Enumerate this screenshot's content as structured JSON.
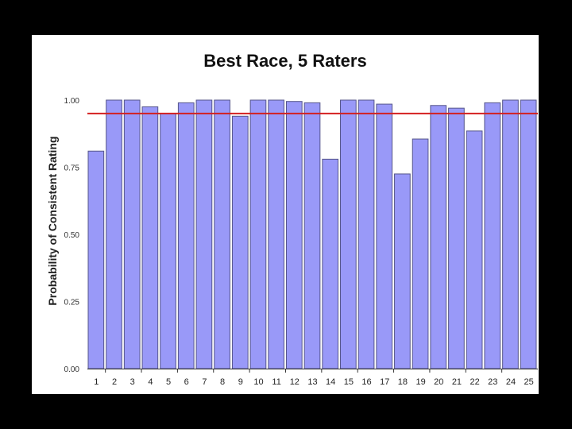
{
  "chart_data": {
    "type": "bar",
    "title": "Best Race, 5 Raters",
    "xlabel": "",
    "ylabel": "Probability of Consistent Rating",
    "ylim": [
      0,
      1
    ],
    "yticks": [
      "0.00",
      "0.25",
      "0.50",
      "0.75",
      "1.00"
    ],
    "categories": [
      "1",
      "2",
      "3",
      "4",
      "5",
      "6",
      "7",
      "8",
      "9",
      "10",
      "11",
      "12",
      "13",
      "14",
      "15",
      "16",
      "17",
      "18",
      "19",
      "20",
      "21",
      "22",
      "23",
      "24",
      "25"
    ],
    "values": [
      0.81,
      1.0,
      1.0,
      0.975,
      0.95,
      0.99,
      1.0,
      1.0,
      0.94,
      1.0,
      1.0,
      0.995,
      0.99,
      0.78,
      1.0,
      1.0,
      0.985,
      0.725,
      0.855,
      0.98,
      0.97,
      0.885,
      0.99,
      1.0,
      1.0
    ],
    "reference_line": 0.95,
    "colors": {
      "bar": "#9999f8",
      "bar_edge": "#55558a",
      "reference_line": "#d42020",
      "axis": "#333333"
    },
    "grid": false,
    "legend": "none"
  }
}
